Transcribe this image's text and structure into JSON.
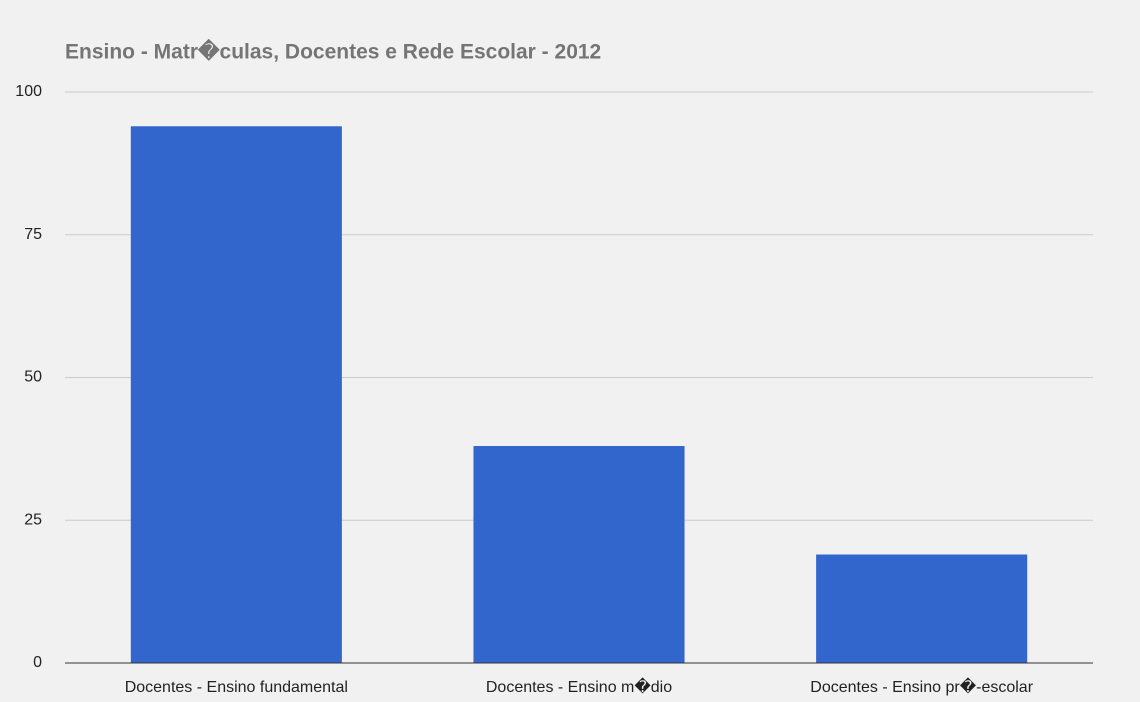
{
  "chart_data": {
    "type": "bar",
    "title": "Ensino - Matr�culas, Docentes e Rede Escolar - 2012",
    "categories": [
      "Docentes - Ensino fundamental",
      "Docentes - Ensino m�dio",
      "Docentes - Ensino pr�-escolar"
    ],
    "values": [
      94,
      38,
      19
    ],
    "color": "#3366cc",
    "ylim": [
      0,
      100
    ],
    "yticks": [
      0,
      25,
      50,
      75,
      100
    ],
    "grid": true
  }
}
